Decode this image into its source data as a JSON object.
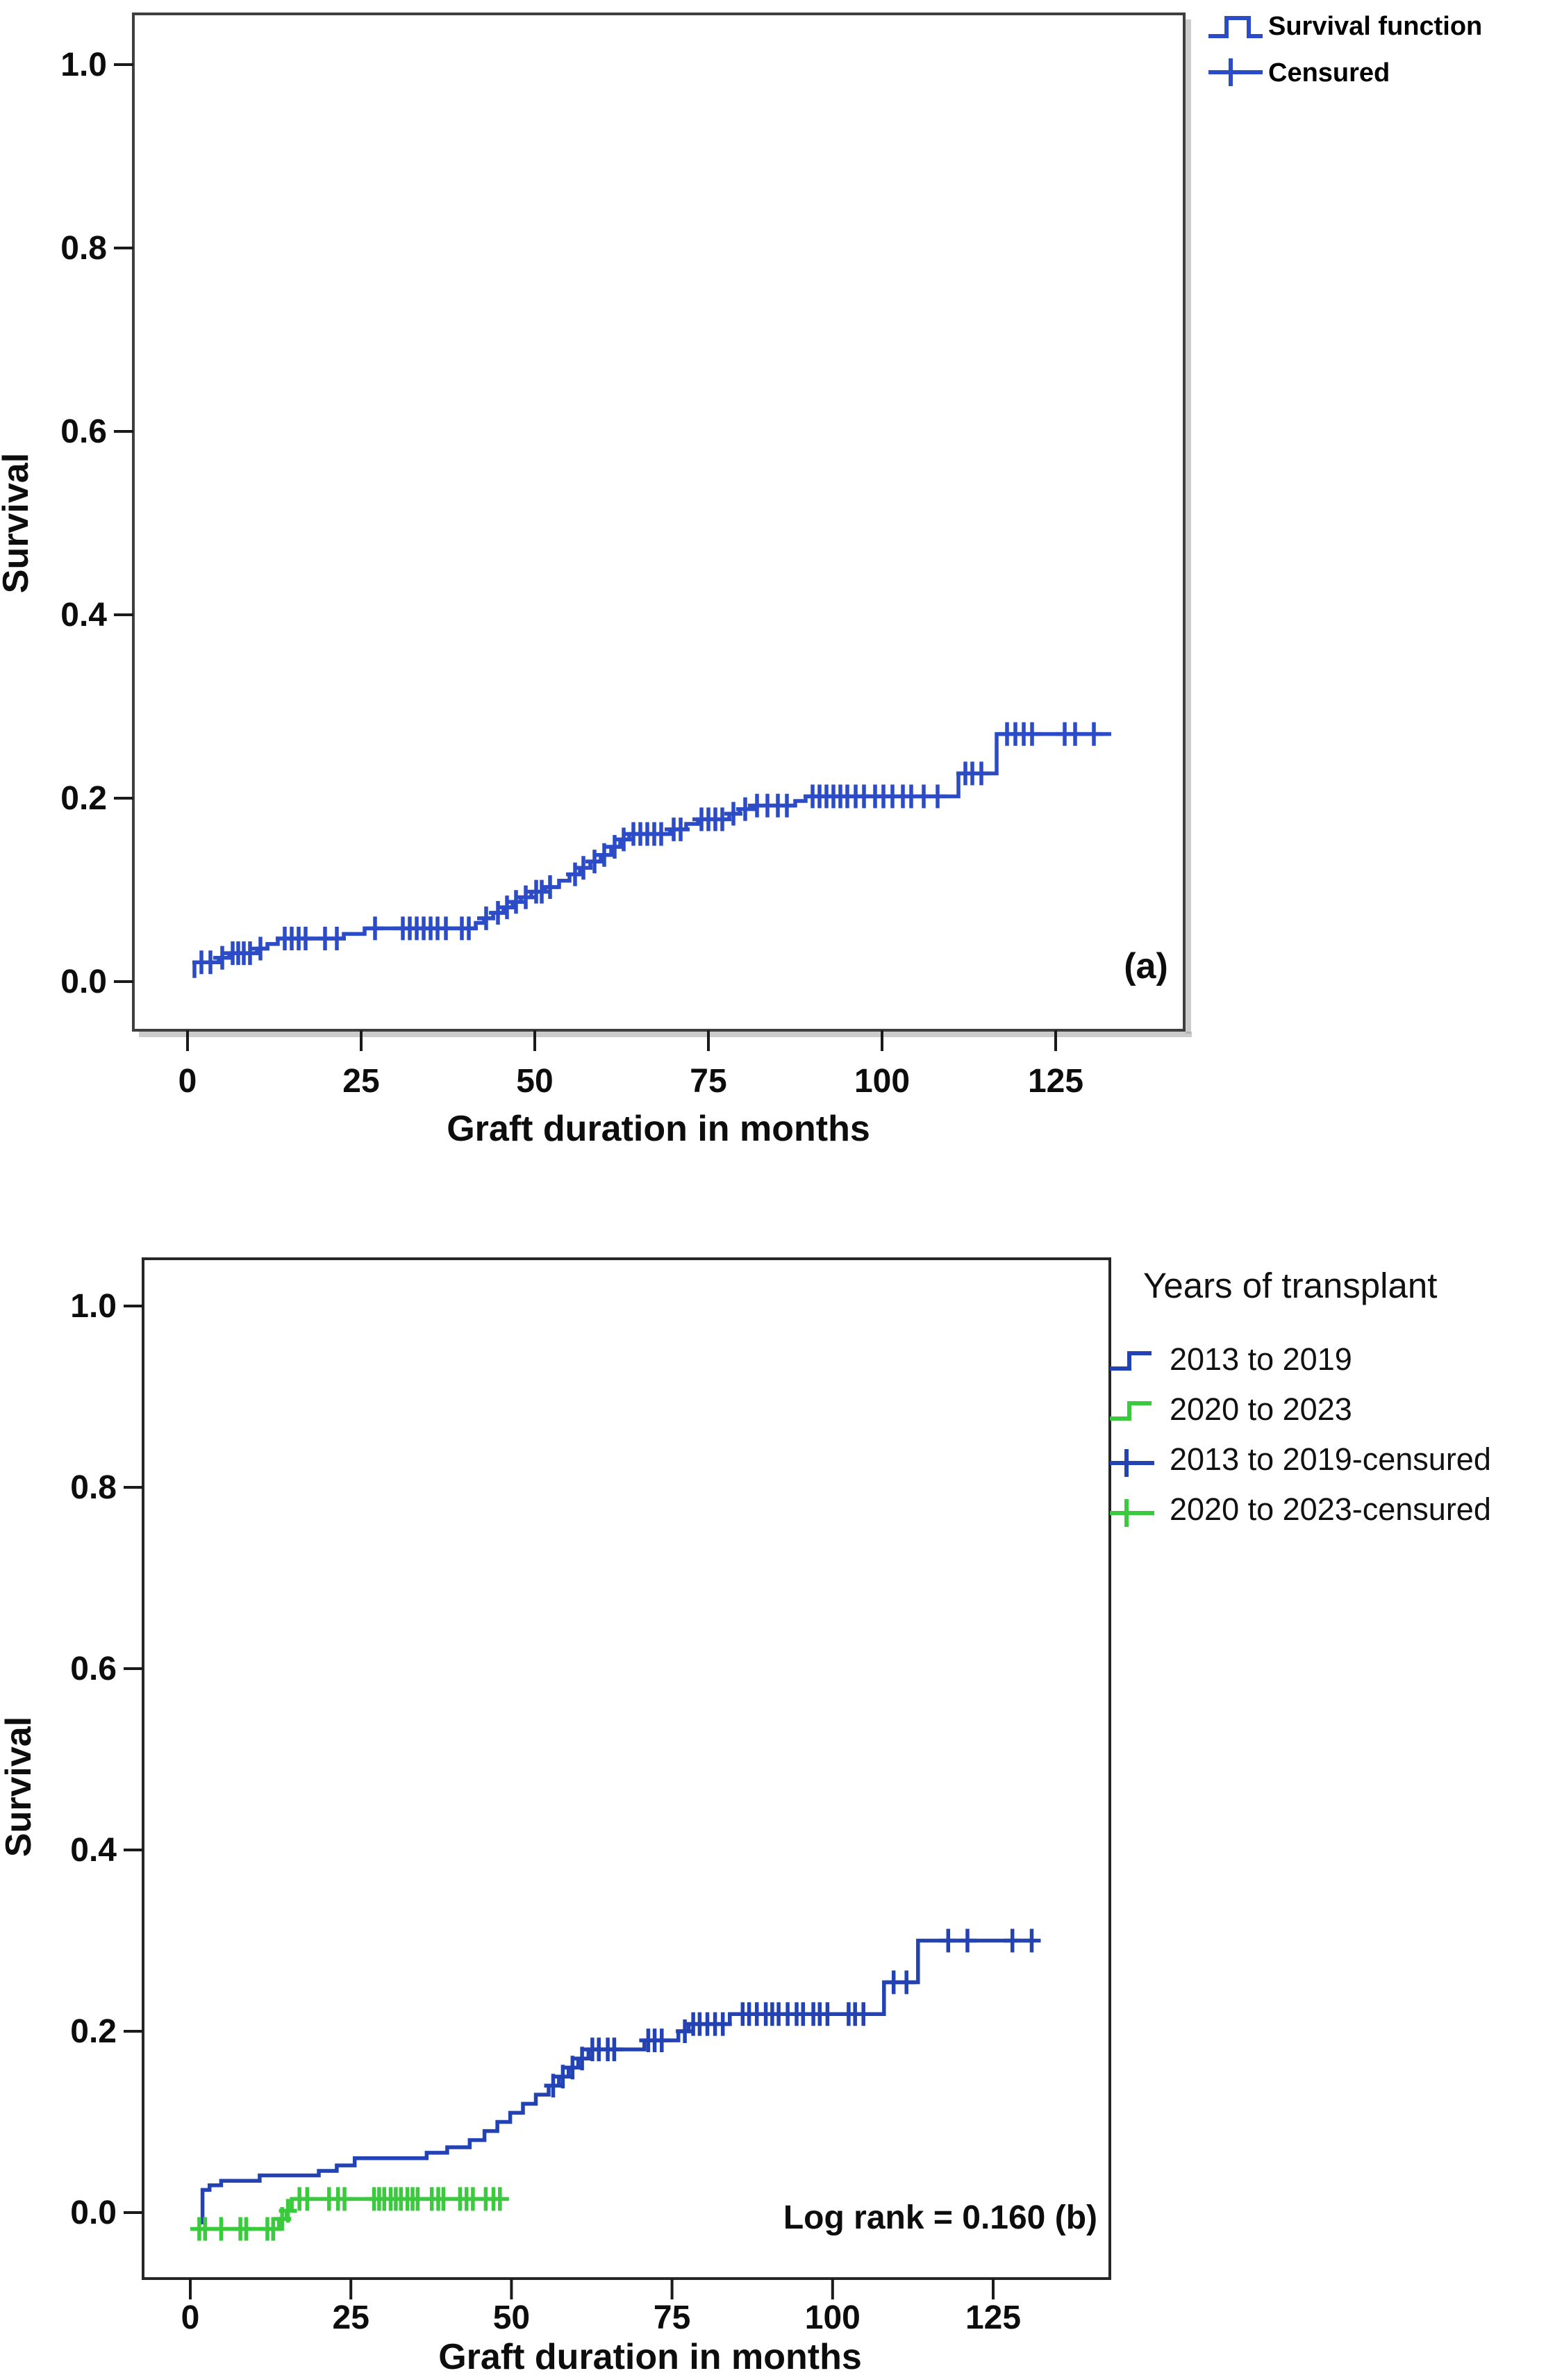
{
  "page": {
    "background": "#ffffff"
  },
  "panels": {
    "a": {
      "tag": "(a)",
      "ylabel": "Survival",
      "xlabel": "Graft duration in months",
      "legend": {
        "items": [
          {
            "label": "Survival function",
            "marker": "step-line-icon",
            "color": "#2c4bc6"
          },
          {
            "label": "Censured",
            "marker": "plus-line-icon",
            "color": "#2c4bc6"
          }
        ]
      }
    },
    "b": {
      "ylabel": "Survival",
      "xlabel": "Graft duration in months",
      "annotation": "Log rank = 0.160 (b)",
      "legend": {
        "title": "Years of transplant",
        "items": [
          {
            "label": "2013 to 2019",
            "marker": "step-line-icon",
            "color": "#2343b4"
          },
          {
            "label": "2020 to 2023",
            "marker": "step-line-icon",
            "color": "#3bc93e"
          },
          {
            "label": "2013 to 2019-censured",
            "marker": "plus-line-icon",
            "color": "#2343b4"
          },
          {
            "label": "2020 to 2023-censured",
            "marker": "plus-line-icon",
            "color": "#3bc93e"
          }
        ]
      }
    }
  },
  "chart_data": [
    {
      "type": "line",
      "subtype": "kaplan_meier_step",
      "panel": "a",
      "title": "",
      "xlabel": "Graft duration in months",
      "ylabel": "Survival",
      "xlim": [
        -7,
        145
      ],
      "ylim": [
        -0.06,
        1.05
      ],
      "xticks": [
        0,
        25,
        50,
        75,
        100,
        125
      ],
      "yticks": [
        0.0,
        0.2,
        0.4,
        0.6,
        0.8,
        1.0
      ],
      "grid": false,
      "legend_position": "top-right-outside",
      "series": [
        {
          "name": "Survival function",
          "color": "#2c4bc6",
          "start": [
            1,
            0.004
          ],
          "steps": [
            [
              1,
              0.021
            ],
            [
              4.5,
              0.026
            ],
            [
              6,
              0.031
            ],
            [
              10,
              0.036
            ],
            [
              11.5,
              0.041
            ],
            [
              13,
              0.047
            ],
            [
              22.5,
              0.052
            ],
            [
              25.5,
              0.058
            ],
            [
              41.5,
              0.064
            ],
            [
              42.7,
              0.069
            ],
            [
              44,
              0.075
            ],
            [
              45.5,
              0.081
            ],
            [
              46.8,
              0.087
            ],
            [
              48,
              0.092
            ],
            [
              49.5,
              0.098
            ],
            [
              51.5,
              0.103
            ],
            [
              53.5,
              0.11
            ],
            [
              55,
              0.117
            ],
            [
              56.5,
              0.124
            ],
            [
              58,
              0.131
            ],
            [
              59.5,
              0.138
            ],
            [
              61,
              0.147
            ],
            [
              62.3,
              0.155
            ],
            [
              63.6,
              0.161
            ],
            [
              69.5,
              0.166
            ],
            [
              71.8,
              0.172
            ],
            [
              73.5,
              0.177
            ],
            [
              78,
              0.183
            ],
            [
              79.5,
              0.188
            ],
            [
              81.5,
              0.192
            ],
            [
              87.5,
              0.197
            ],
            [
              89,
              0.202
            ],
            [
              111,
              0.227
            ],
            [
              116.5,
              0.27
            ]
          ],
          "end": 133,
          "censored": [
            [
              2,
              0.021
            ],
            [
              3.3,
              0.021
            ],
            [
              5,
              0.026
            ],
            [
              6.5,
              0.031
            ],
            [
              7.3,
              0.031
            ],
            [
              8.1,
              0.031
            ],
            [
              9,
              0.031
            ],
            [
              10.5,
              0.036
            ],
            [
              14,
              0.047
            ],
            [
              15,
              0.047
            ],
            [
              16,
              0.047
            ],
            [
              17,
              0.047
            ],
            [
              19.8,
              0.047
            ],
            [
              21.5,
              0.047
            ],
            [
              27,
              0.058
            ],
            [
              31,
              0.058
            ],
            [
              32,
              0.058
            ],
            [
              33,
              0.058
            ],
            [
              34,
              0.058
            ],
            [
              35,
              0.058
            ],
            [
              36,
              0.058
            ],
            [
              37.2,
              0.058
            ],
            [
              39.5,
              0.058
            ],
            [
              40.5,
              0.058
            ],
            [
              43,
              0.069
            ],
            [
              44.7,
              0.075
            ],
            [
              46,
              0.081
            ],
            [
              47.3,
              0.087
            ],
            [
              48.7,
              0.092
            ],
            [
              50.2,
              0.098
            ],
            [
              51,
              0.098
            ],
            [
              52.2,
              0.103
            ],
            [
              55.8,
              0.117
            ],
            [
              57,
              0.124
            ],
            [
              58.6,
              0.131
            ],
            [
              60,
              0.138
            ],
            [
              61.5,
              0.147
            ],
            [
              62.8,
              0.155
            ],
            [
              64.2,
              0.161
            ],
            [
              65.2,
              0.161
            ],
            [
              66.2,
              0.161
            ],
            [
              67.2,
              0.161
            ],
            [
              68.2,
              0.161
            ],
            [
              70,
              0.166
            ],
            [
              71,
              0.166
            ],
            [
              74,
              0.177
            ],
            [
              75,
              0.177
            ],
            [
              76,
              0.177
            ],
            [
              77,
              0.177
            ],
            [
              78.6,
              0.183
            ],
            [
              80.3,
              0.188
            ],
            [
              82,
              0.192
            ],
            [
              83.5,
              0.192
            ],
            [
              85,
              0.192
            ],
            [
              86.3,
              0.192
            ],
            [
              90,
              0.202
            ],
            [
              91,
              0.202
            ],
            [
              92,
              0.202
            ],
            [
              93,
              0.202
            ],
            [
              94,
              0.202
            ],
            [
              95,
              0.202
            ],
            [
              96.2,
              0.202
            ],
            [
              97.4,
              0.202
            ],
            [
              99,
              0.202
            ],
            [
              100.2,
              0.202
            ],
            [
              101.5,
              0.202
            ],
            [
              103,
              0.202
            ],
            [
              104.2,
              0.202
            ],
            [
              106,
              0.202
            ],
            [
              108,
              0.202
            ],
            [
              112,
              0.227
            ],
            [
              113,
              0.227
            ],
            [
              114.3,
              0.227
            ],
            [
              118,
              0.27
            ],
            [
              119.2,
              0.27
            ],
            [
              120.4,
              0.27
            ],
            [
              121.6,
              0.27
            ],
            [
              126.3,
              0.27
            ],
            [
              127.8,
              0.27
            ],
            [
              130.5,
              0.27
            ]
          ]
        }
      ]
    },
    {
      "type": "line",
      "subtype": "kaplan_meier_step",
      "panel": "b",
      "title": "Years of transplant",
      "xlabel": "Graft duration in months",
      "ylabel": "Survival",
      "annotation": "Log rank = 0.160 (b)",
      "log_rank_p": 0.16,
      "xlim": [
        -7,
        143
      ],
      "ylim": [
        -0.06,
        1.05
      ],
      "xticks": [
        0,
        25,
        50,
        75,
        100,
        125
      ],
      "yticks": [
        0.0,
        0.2,
        0.4,
        0.6,
        0.8,
        1.0
      ],
      "grid": false,
      "legend_position": "right-outside",
      "series": [
        {
          "name": "2013 to 2019",
          "color": "#2343b4",
          "start": [
            1.9,
            -0.013
          ],
          "steps": [
            [
              1.9,
              0.025
            ],
            [
              3,
              0.03
            ],
            [
              4.8,
              0.035
            ],
            [
              10.8,
              0.041
            ],
            [
              20,
              0.046
            ],
            [
              22.8,
              0.052
            ],
            [
              25.6,
              0.06
            ],
            [
              36.8,
              0.066
            ],
            [
              40,
              0.072
            ],
            [
              43.5,
              0.08
            ],
            [
              45.8,
              0.09
            ],
            [
              47.8,
              0.1
            ],
            [
              49.8,
              0.11
            ],
            [
              51.8,
              0.12
            ],
            [
              53.8,
              0.13
            ],
            [
              55.8,
              0.14
            ],
            [
              57.4,
              0.15
            ],
            [
              58.9,
              0.16
            ],
            [
              60.4,
              0.17
            ],
            [
              62,
              0.18
            ],
            [
              70.7,
              0.19
            ],
            [
              76,
              0.2
            ],
            [
              77.6,
              0.208
            ],
            [
              84,
              0.219
            ],
            [
              108,
              0.254
            ],
            [
              113.3,
              0.3
            ]
          ],
          "end": 131,
          "censored": [
            [
              56.5,
              0.14
            ],
            [
              58,
              0.15
            ],
            [
              59.5,
              0.16
            ],
            [
              61,
              0.17
            ],
            [
              62.6,
              0.18
            ],
            [
              63.6,
              0.18
            ],
            [
              65,
              0.18
            ],
            [
              66,
              0.18
            ],
            [
              71.3,
              0.19
            ],
            [
              72.3,
              0.19
            ],
            [
              73.4,
              0.19
            ],
            [
              77,
              0.2
            ],
            [
              78.3,
              0.208
            ],
            [
              79.3,
              0.208
            ],
            [
              80.5,
              0.208
            ],
            [
              81.7,
              0.208
            ],
            [
              82.9,
              0.208
            ],
            [
              86,
              0.219
            ],
            [
              87,
              0.219
            ],
            [
              88.2,
              0.219
            ],
            [
              89.6,
              0.219
            ],
            [
              90.6,
              0.219
            ],
            [
              91.6,
              0.219
            ],
            [
              93,
              0.219
            ],
            [
              94.4,
              0.219
            ],
            [
              95.4,
              0.219
            ],
            [
              97,
              0.219
            ],
            [
              98,
              0.219
            ],
            [
              99.2,
              0.219
            ],
            [
              102.5,
              0.219
            ],
            [
              103.5,
              0.219
            ],
            [
              104.8,
              0.219
            ],
            [
              109.5,
              0.254
            ],
            [
              111.5,
              0.254
            ],
            [
              118,
              0.3
            ],
            [
              121,
              0.3
            ],
            [
              128,
              0.3
            ],
            [
              131,
              0.3
            ]
          ]
        },
        {
          "name": "2020 to 2023",
          "color": "#3bc93e",
          "start": [
            0.9,
            -0.018
          ],
          "steps": [
            [
              13.8,
              -0.007
            ],
            [
              15,
              0.002
            ],
            [
              15.8,
              0.015
            ]
          ],
          "end": 48.5,
          "censored": [
            [
              1.4,
              -0.018
            ],
            [
              2.3,
              -0.018
            ],
            [
              4.8,
              -0.018
            ],
            [
              7.8,
              -0.018
            ],
            [
              8.7,
              -0.018
            ],
            [
              12,
              -0.018
            ],
            [
              12.9,
              -0.018
            ],
            [
              14.3,
              -0.007
            ],
            [
              15.2,
              0.002
            ],
            [
              17,
              0.015
            ],
            [
              18.2,
              0.015
            ],
            [
              21.6,
              0.015
            ],
            [
              23,
              0.015
            ],
            [
              24,
              0.015
            ],
            [
              28.6,
              0.015
            ],
            [
              29.4,
              0.015
            ],
            [
              30.2,
              0.015
            ],
            [
              31.2,
              0.015
            ],
            [
              32,
              0.015
            ],
            [
              32.8,
              0.015
            ],
            [
              33.8,
              0.015
            ],
            [
              34.6,
              0.015
            ],
            [
              35.4,
              0.015
            ],
            [
              37.6,
              0.015
            ],
            [
              38.6,
              0.015
            ],
            [
              39.4,
              0.015
            ],
            [
              42,
              0.015
            ],
            [
              43,
              0.015
            ],
            [
              44,
              0.015
            ],
            [
              46,
              0.015
            ],
            [
              47.2,
              0.015
            ],
            [
              48.2,
              0.015
            ]
          ]
        }
      ]
    }
  ]
}
